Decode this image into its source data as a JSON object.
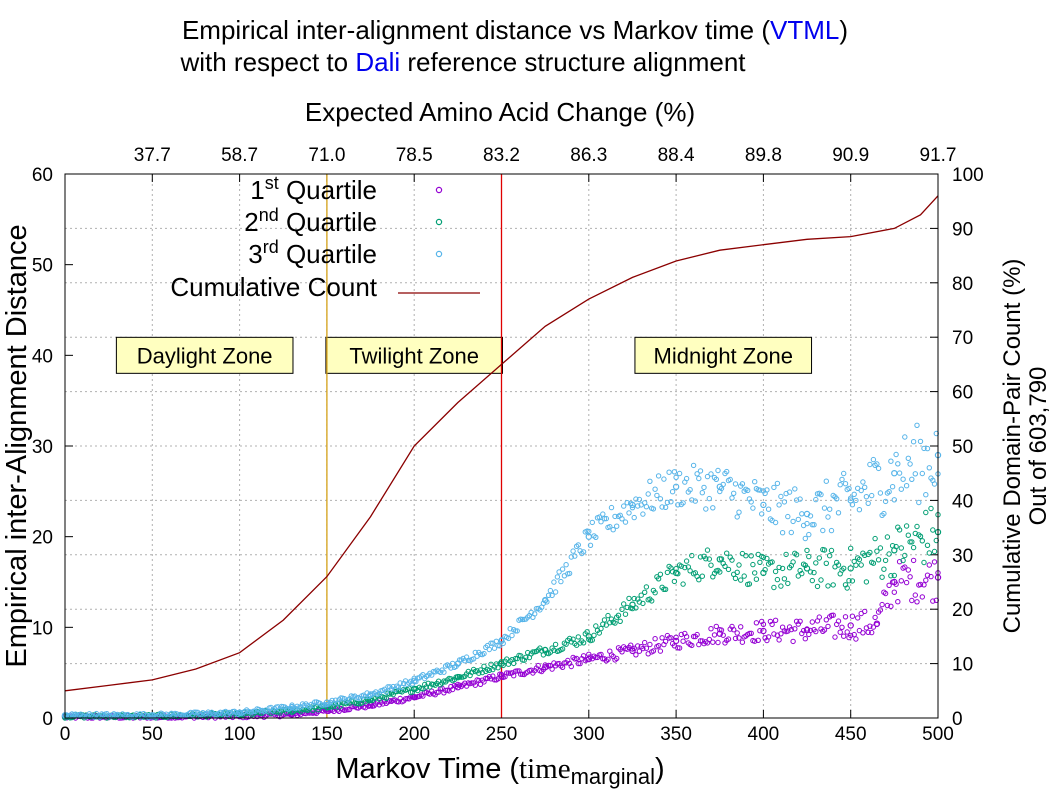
{
  "title": {
    "line1_pre": "Empirical inter-alignment distance vs Markov time (",
    "line1_hl": "VTML",
    "line1_post": ")",
    "line2_pre": "with respect to ",
    "line2_hl": "Dali",
    "line2_post": " reference structure alignment",
    "highlight_color": "#0000ee"
  },
  "chart_data": {
    "type": "scatter",
    "x_axis": {
      "label_pre": "Markov Time (",
      "label_time": "time",
      "label_sub": "marginal",
      "label_post": ")",
      "range": [
        0,
        500
      ],
      "ticks": [
        0,
        50,
        100,
        150,
        200,
        250,
        300,
        350,
        400,
        450,
        500
      ]
    },
    "y_axis": {
      "label": "Empirical inter-Alignment Distance",
      "range": [
        0,
        60
      ],
      "ticks": [
        0,
        10,
        20,
        30,
        40,
        50,
        60
      ]
    },
    "y2_axis": {
      "label_line1": "Cumulative Domain-Pair Count (%)",
      "label_line2": "Out of 603,790",
      "range": [
        0,
        100
      ],
      "ticks": [
        0,
        10,
        20,
        30,
        40,
        50,
        60,
        70,
        80,
        90,
        100
      ]
    },
    "x2_axis": {
      "label": "Expected Amino Acid Change (%)",
      "tick_labels": [
        "37.7",
        "58.7",
        "71.0",
        "78.5",
        "83.2",
        "86.3",
        "88.4",
        "89.8",
        "90.9",
        "91.7"
      ]
    },
    "grid": true,
    "legend_placement": "top-left",
    "series": [
      {
        "name_base": "1",
        "name_sup": "st",
        "name_rest": " Quartile",
        "color": "#9400d3",
        "marker": "circle",
        "points": [
          [
            0,
            0.1
          ],
          [
            50,
            0.1
          ],
          [
            100,
            0.2
          ],
          [
            130,
            0.4
          ],
          [
            150,
            0.8
          ],
          [
            175,
            1.4
          ],
          [
            200,
            2.3
          ],
          [
            225,
            3.4
          ],
          [
            250,
            4.6
          ],
          [
            275,
            5.6
          ],
          [
            300,
            6.5
          ],
          [
            325,
            7.4
          ],
          [
            350,
            8.5
          ],
          [
            375,
            9.3
          ],
          [
            400,
            9.6
          ],
          [
            425,
            9.7
          ],
          [
            450,
            10.2
          ],
          [
            465,
            10.4
          ],
          [
            475,
            15
          ],
          [
            500,
            15.5
          ]
        ]
      },
      {
        "name_base": "2",
        "name_sup": "nd",
        "name_rest": " Quartile",
        "color": "#009e73",
        "marker": "circle",
        "points": [
          [
            0,
            0.2
          ],
          [
            50,
            0.2
          ],
          [
            100,
            0.4
          ],
          [
            130,
            0.8
          ],
          [
            150,
            1.2
          ],
          [
            175,
            2.0
          ],
          [
            200,
            3.2
          ],
          [
            225,
            4.5
          ],
          [
            250,
            6.0
          ],
          [
            275,
            7.5
          ],
          [
            300,
            9.0
          ],
          [
            325,
            12.5
          ],
          [
            350,
            16
          ],
          [
            375,
            17.5
          ],
          [
            400,
            16
          ],
          [
            425,
            16.5
          ],
          [
            450,
            16.5
          ],
          [
            475,
            18.5
          ],
          [
            500,
            20.5
          ]
        ]
      },
      {
        "name_base": "3",
        "name_sup": "rd",
        "name_rest": " Quartile",
        "color": "#56b4e9",
        "marker": "circle",
        "points": [
          [
            0,
            0.3
          ],
          [
            50,
            0.3
          ],
          [
            100,
            0.6
          ],
          [
            130,
            1.2
          ],
          [
            150,
            1.7
          ],
          [
            175,
            2.6
          ],
          [
            200,
            4.1
          ],
          [
            225,
            6.0
          ],
          [
            250,
            8.5
          ],
          [
            275,
            13
          ],
          [
            300,
            20
          ],
          [
            325,
            23.5
          ],
          [
            350,
            25.5
          ],
          [
            375,
            25.5
          ],
          [
            400,
            23.5
          ],
          [
            425,
            22.5
          ],
          [
            450,
            24
          ],
          [
            475,
            27
          ],
          [
            500,
            29
          ]
        ]
      },
      {
        "name": "Cumulative Count",
        "color": "#8b0000",
        "marker": "line",
        "axis": "y2",
        "points": [
          [
            0,
            5
          ],
          [
            25,
            6
          ],
          [
            50,
            7
          ],
          [
            75,
            9
          ],
          [
            100,
            12
          ],
          [
            125,
            18
          ],
          [
            150,
            26
          ],
          [
            175,
            37
          ],
          [
            200,
            50
          ],
          [
            225,
            58
          ],
          [
            250,
            65
          ],
          [
            275,
            72
          ],
          [
            300,
            77
          ],
          [
            325,
            81
          ],
          [
            350,
            84
          ],
          [
            375,
            86
          ],
          [
            400,
            87
          ],
          [
            425,
            88
          ],
          [
            450,
            88.5
          ],
          [
            475,
            90
          ],
          [
            490,
            92.5
          ],
          [
            500,
            96
          ]
        ]
      }
    ],
    "annotations": [
      {
        "text": "Daylight Zone",
        "x": 80,
        "y": 40
      },
      {
        "text": "Twilight Zone",
        "x": 200,
        "y": 40
      },
      {
        "text": "Midnight Zone",
        "x": 377,
        "y": 40
      }
    ],
    "vertical_lines": [
      {
        "x": 150,
        "color": "#d4a017"
      },
      {
        "x": 250,
        "color": "#e00000"
      }
    ]
  }
}
